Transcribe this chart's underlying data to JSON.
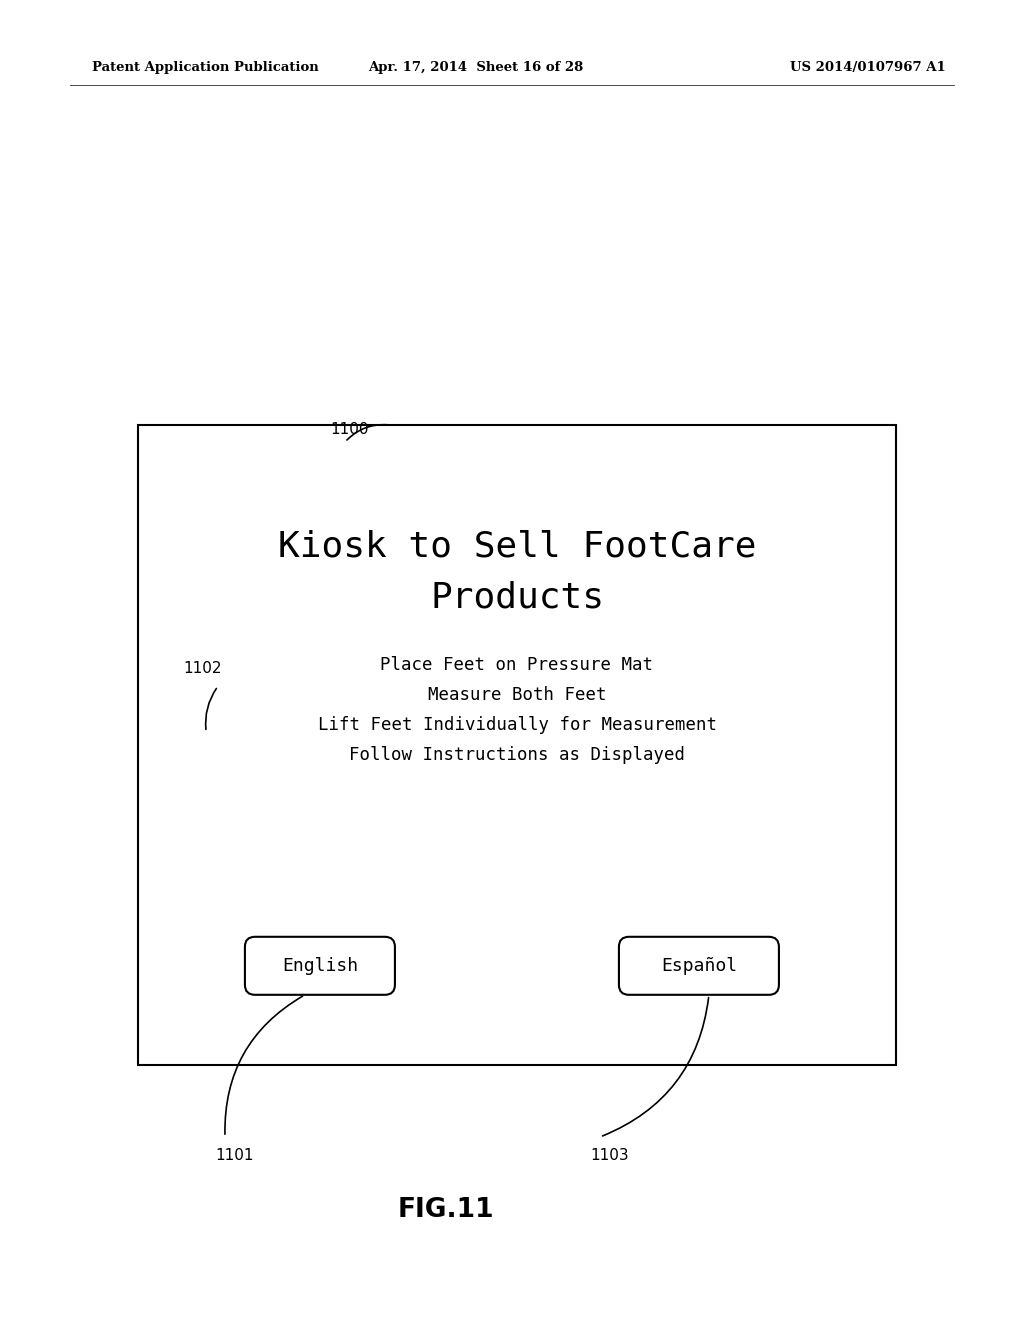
{
  "bg_color": "#ffffff",
  "header_left": "Patent Application Publication",
  "header_mid": "Apr. 17, 2014  Sheet 16 of 28",
  "header_right": "US 2014/0107967 A1",
  "label_1100": "1100",
  "label_1101": "1101",
  "label_1102": "1102",
  "label_1103": "1103",
  "title_line1": "Kiosk to Sell FootCare",
  "title_line2": "Products",
  "instr_line1": "Place Feet on Pressure Mat",
  "instr_line2": "Measure Both Feet",
  "instr_line3": "Lift Feet Individually for Measurement",
  "instr_line4": "Follow Instructions as Displayed",
  "btn_english": "English",
  "btn_espanol": "Español",
  "fig_label": "FIG.11"
}
